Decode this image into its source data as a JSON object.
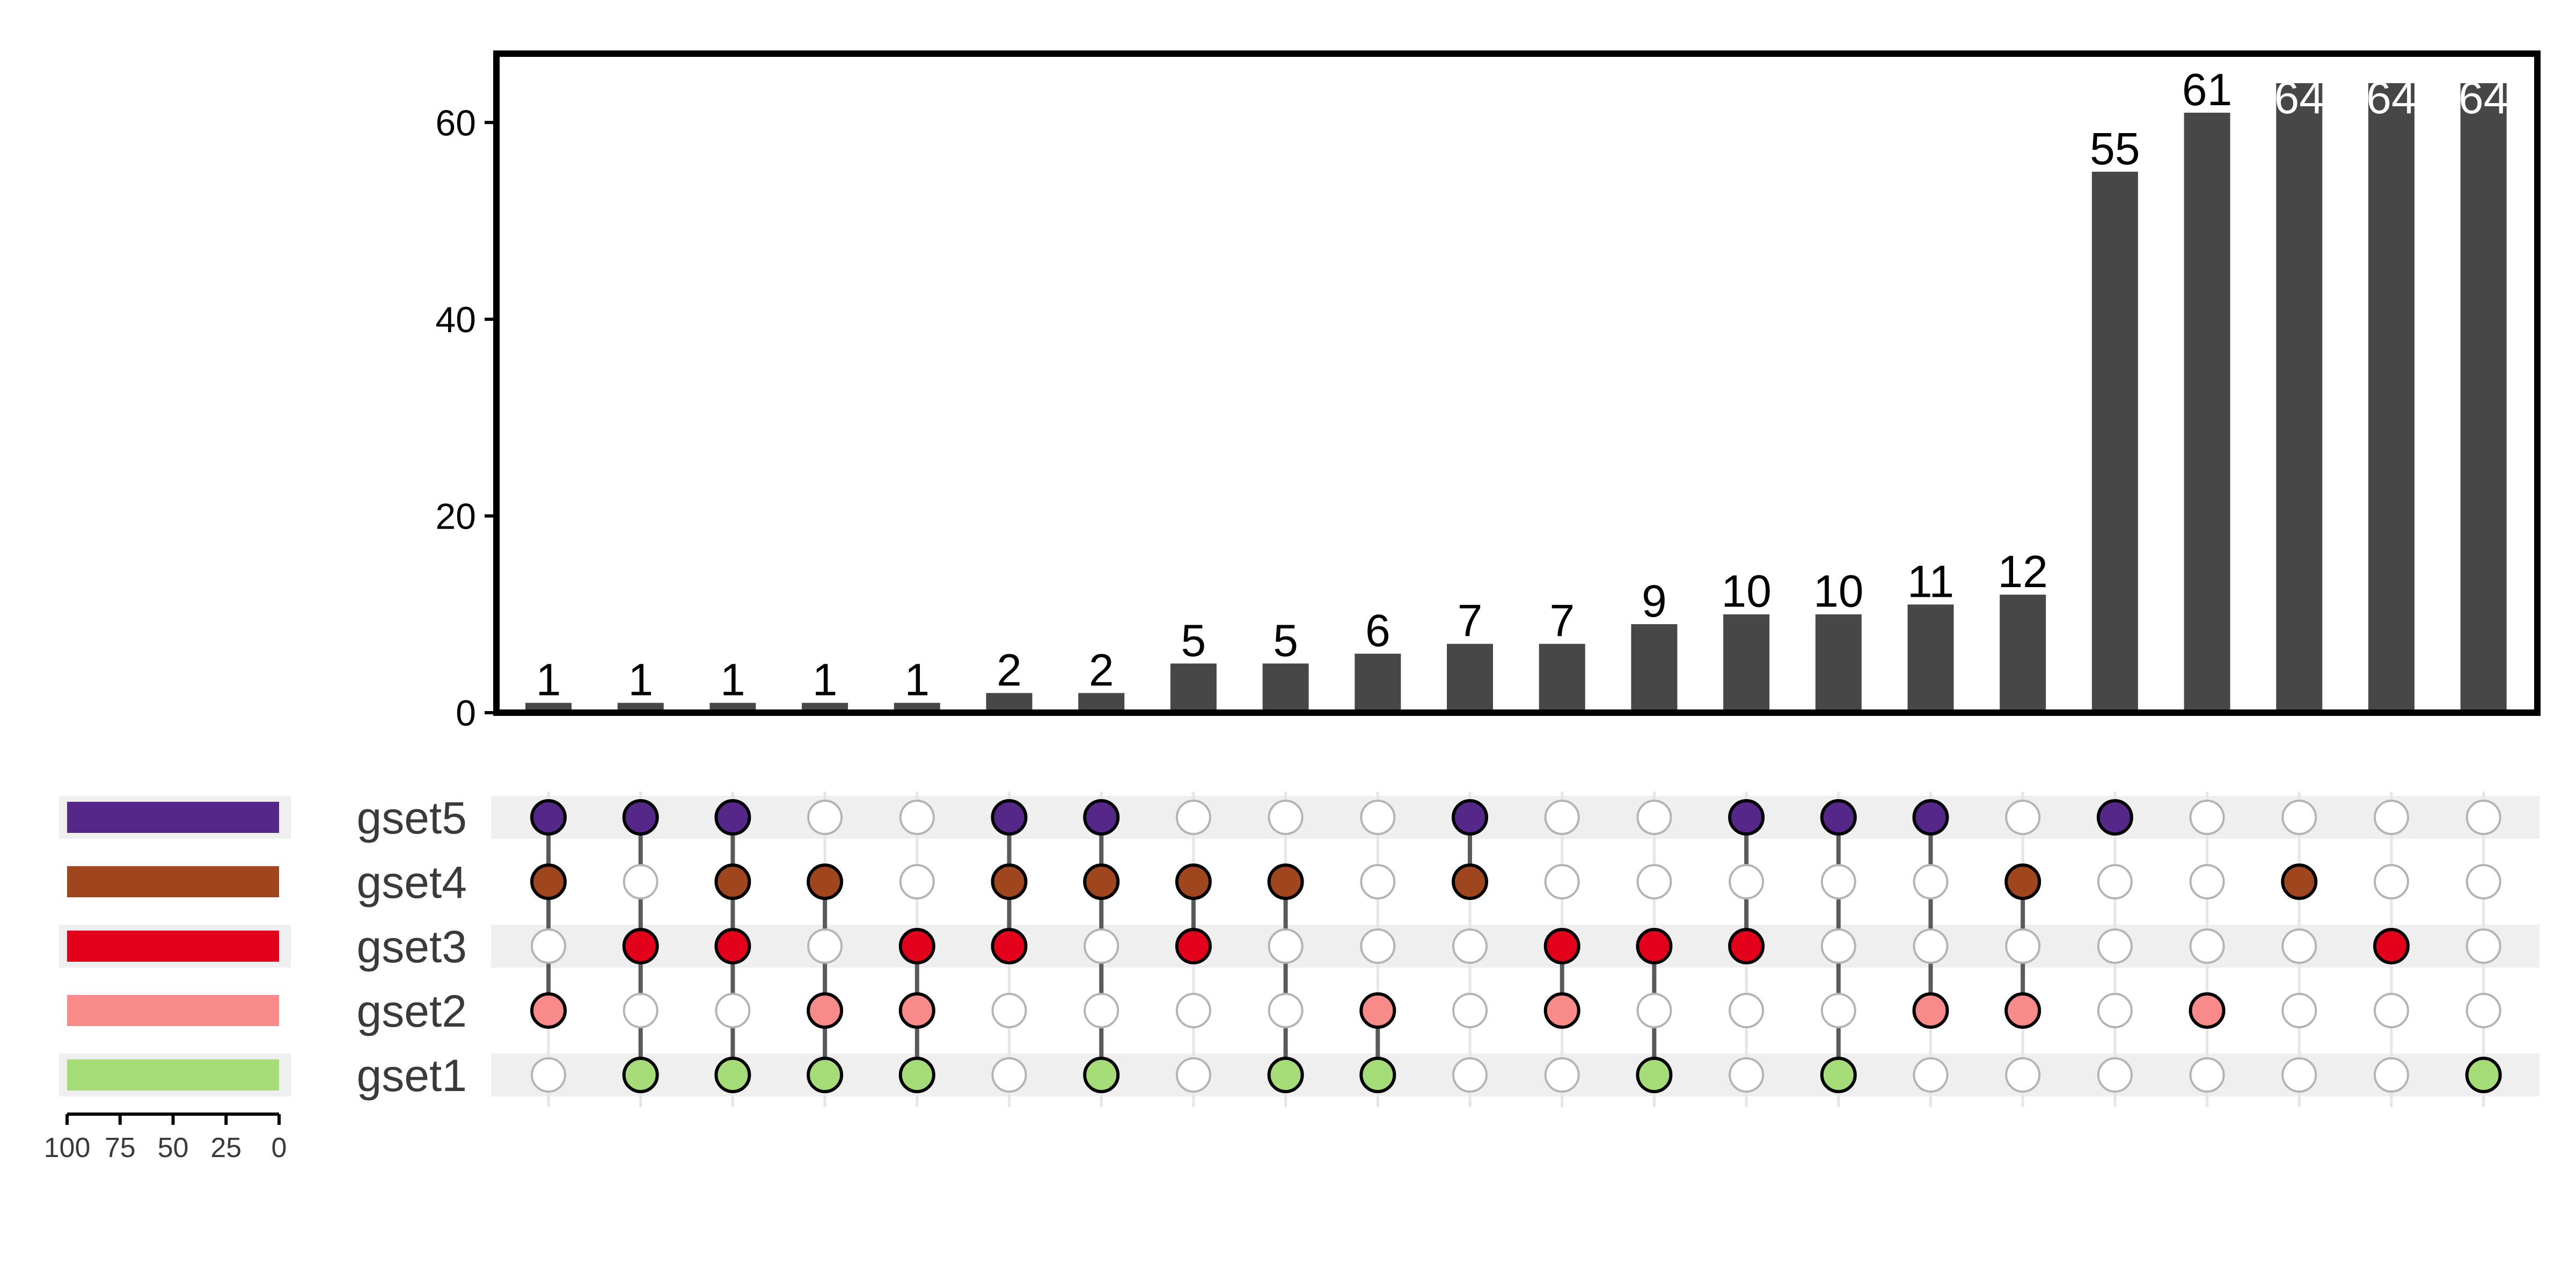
{
  "chart_data": {
    "type": "upset",
    "y_axis": {
      "ylim": [
        0,
        67
      ],
      "ticks": [
        0,
        20,
        40,
        60
      ]
    },
    "sets": [
      {
        "name": "gset5",
        "color": "#542788"
      },
      {
        "name": "gset4",
        "color": "#A0461F"
      },
      {
        "name": "gset3",
        "color": "#E2001A"
      },
      {
        "name": "gset2",
        "color": "#F98A8A"
      },
      {
        "name": "gset1",
        "color": "#A6DC78"
      }
    ],
    "set_size_axis": {
      "ticks": [
        "100",
        "75",
        "50",
        "25",
        "0"
      ],
      "xlim": [
        100,
        0
      ]
    },
    "set_sizes": {
      "gset5": 100,
      "gset4": 100,
      "gset3": 100,
      "gset2": 100,
      "gset1": 100
    },
    "intersections": [
      {
        "sets": [
          "gset5",
          "gset4",
          "gset2"
        ],
        "value": 1,
        "label": "1"
      },
      {
        "sets": [
          "gset5",
          "gset3",
          "gset1"
        ],
        "value": 1,
        "label": "1"
      },
      {
        "sets": [
          "gset5",
          "gset4",
          "gset3",
          "gset1"
        ],
        "value": 1,
        "label": "1"
      },
      {
        "sets": [
          "gset4",
          "gset2",
          "gset1"
        ],
        "value": 1,
        "label": "1"
      },
      {
        "sets": [
          "gset3",
          "gset2",
          "gset1"
        ],
        "value": 1,
        "label": "1"
      },
      {
        "sets": [
          "gset5",
          "gset4",
          "gset3"
        ],
        "value": 2,
        "label": "2"
      },
      {
        "sets": [
          "gset5",
          "gset4",
          "gset1"
        ],
        "value": 2,
        "label": "2"
      },
      {
        "sets": [
          "gset4",
          "gset3"
        ],
        "value": 5,
        "label": "5"
      },
      {
        "sets": [
          "gset4",
          "gset1"
        ],
        "value": 5,
        "label": "5"
      },
      {
        "sets": [
          "gset2",
          "gset1"
        ],
        "value": 6,
        "label": "6"
      },
      {
        "sets": [
          "gset5",
          "gset4"
        ],
        "value": 7,
        "label": "7"
      },
      {
        "sets": [
          "gset3",
          "gset2"
        ],
        "value": 7,
        "label": "7"
      },
      {
        "sets": [
          "gset3",
          "gset1"
        ],
        "value": 9,
        "label": "9"
      },
      {
        "sets": [
          "gset5",
          "gset3"
        ],
        "value": 10,
        "label": "10"
      },
      {
        "sets": [
          "gset5",
          "gset1"
        ],
        "value": 10,
        "label": "10"
      },
      {
        "sets": [
          "gset5",
          "gset2"
        ],
        "value": 11,
        "label": "11"
      },
      {
        "sets": [
          "gset4",
          "gset2"
        ],
        "value": 12,
        "label": "12"
      },
      {
        "sets": [
          "gset5"
        ],
        "value": 55,
        "label": "55"
      },
      {
        "sets": [
          "gset2"
        ],
        "value": 61,
        "label": "61"
      },
      {
        "sets": [
          "gset4"
        ],
        "value": 64,
        "label": "64"
      },
      {
        "sets": [
          "gset3"
        ],
        "value": 64,
        "label": "64"
      },
      {
        "sets": [
          "gset1"
        ],
        "value": 64,
        "label": "64"
      }
    ],
    "colors": {
      "bar": "#474747",
      "connector": "#5a5a5a",
      "empty_dot_fill": "#ffffff",
      "empty_dot_stroke": "#b4b4b4",
      "row_stripe": "#efefef",
      "panel_border": "#000000",
      "label_on_white": "#000000",
      "label_on_bar": "#ffffff"
    }
  }
}
